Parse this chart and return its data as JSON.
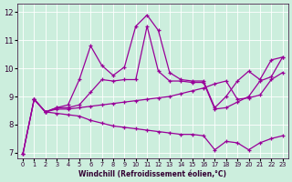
{
  "xlabel": "Windchill (Refroidissement éolien,°C)",
  "bg_color": "#cceedd",
  "line_color": "#990099",
  "xlim": [
    -0.5,
    23.5
  ],
  "ylim": [
    6.8,
    12.3
  ],
  "xticks": [
    0,
    1,
    2,
    3,
    4,
    5,
    6,
    7,
    8,
    9,
    10,
    11,
    12,
    13,
    14,
    15,
    16,
    17,
    18,
    19,
    20,
    21,
    22,
    23
  ],
  "yticks": [
    7,
    8,
    9,
    10,
    11,
    12
  ],
  "lines": [
    {
      "x": [
        0,
        1,
        2,
        3,
        4,
        5,
        6,
        7,
        8,
        9,
        10,
        11,
        12,
        13,
        14,
        15,
        16,
        17,
        18,
        19,
        20,
        21,
        22,
        23
      ],
      "y": [
        6.95,
        8.9,
        8.45,
        8.6,
        8.7,
        9.6,
        10.8,
        10.1,
        9.75,
        10.05,
        11.5,
        11.9,
        11.35,
        9.85,
        9.6,
        9.55,
        9.55,
        8.6,
        9.0,
        9.55,
        9.9,
        9.6,
        10.3,
        10.4
      ]
    },
    {
      "x": [
        0,
        1,
        2,
        3,
        4,
        5,
        6,
        7,
        8,
        9,
        10,
        11,
        12,
        13,
        14,
        15,
        16,
        17,
        18,
        19,
        20,
        21,
        22,
        23
      ],
      "y": [
        6.95,
        8.9,
        8.45,
        8.6,
        8.6,
        8.7,
        9.15,
        9.6,
        9.55,
        9.6,
        9.6,
        11.5,
        9.9,
        9.55,
        9.55,
        9.5,
        9.5,
        8.55,
        8.6,
        8.8,
        9.0,
        9.55,
        9.7,
        10.4
      ]
    },
    {
      "x": [
        1,
        2,
        3,
        4,
        5,
        6,
        7,
        8,
        9,
        10,
        11,
        12,
        13,
        14,
        15,
        16,
        17,
        18,
        19,
        20,
        21,
        22,
        23
      ],
      "y": [
        8.9,
        8.45,
        8.55,
        8.55,
        8.6,
        8.65,
        8.7,
        8.75,
        8.8,
        8.85,
        8.9,
        8.95,
        9.0,
        9.1,
        9.2,
        9.3,
        9.45,
        9.55,
        8.9,
        8.95,
        9.05,
        9.6,
        9.85
      ]
    },
    {
      "x": [
        0,
        1,
        2,
        3,
        4,
        5,
        6,
        7,
        8,
        9,
        10,
        11,
        12,
        13,
        14,
        15,
        16,
        17,
        18,
        19,
        20,
        21,
        22,
        23
      ],
      "y": [
        6.95,
        8.9,
        8.45,
        8.4,
        8.35,
        8.3,
        8.15,
        8.05,
        7.95,
        7.9,
        7.85,
        7.8,
        7.75,
        7.7,
        7.65,
        7.65,
        7.6,
        7.1,
        7.4,
        7.35,
        7.1,
        7.35,
        7.5,
        7.6
      ]
    }
  ]
}
